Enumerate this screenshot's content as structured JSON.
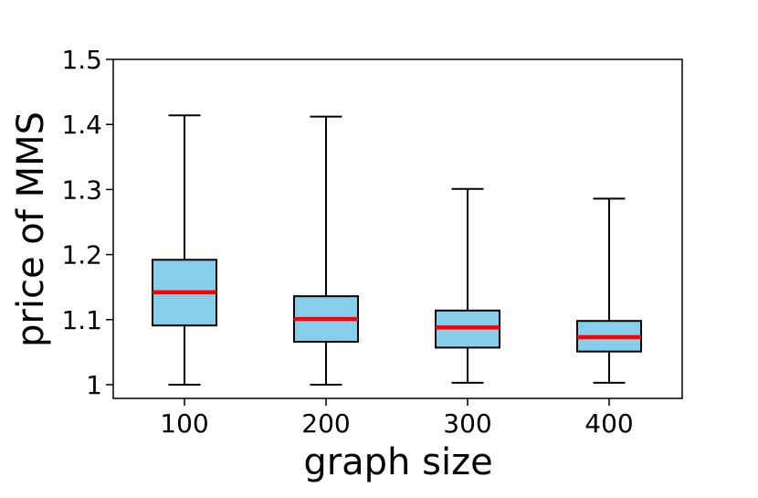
{
  "chart_data": {
    "type": "box",
    "title": "",
    "xlabel": "graph size",
    "ylabel": "price of MMS",
    "ylim": [
      0.98,
      1.5
    ],
    "yticks": [
      1.0,
      1.1,
      1.2,
      1.3,
      1.4,
      1.5
    ],
    "ytick_labels": [
      "1",
      "1.1",
      "1.2",
      "1.3",
      "1.4",
      "1.5"
    ],
    "categories": [
      "100",
      "200",
      "300",
      "400"
    ],
    "boxes": [
      {
        "category": "100",
        "whisker_low": 1.0,
        "q1": 1.091,
        "median": 1.142,
        "q3": 1.192,
        "whisker_high": 1.414
      },
      {
        "category": "200",
        "whisker_low": 1.0,
        "q1": 1.066,
        "median": 1.101,
        "q3": 1.136,
        "whisker_high": 1.412
      },
      {
        "category": "300",
        "whisker_low": 1.003,
        "q1": 1.057,
        "median": 1.088,
        "q3": 1.114,
        "whisker_high": 1.301
      },
      {
        "category": "400",
        "whisker_low": 1.003,
        "q1": 1.051,
        "median": 1.073,
        "q3": 1.098,
        "whisker_high": 1.286
      }
    ],
    "grid": false,
    "legend": "none",
    "colors": {
      "box_fill": "#87CEEB",
      "median": "#FF0000",
      "line": "#000000"
    }
  }
}
